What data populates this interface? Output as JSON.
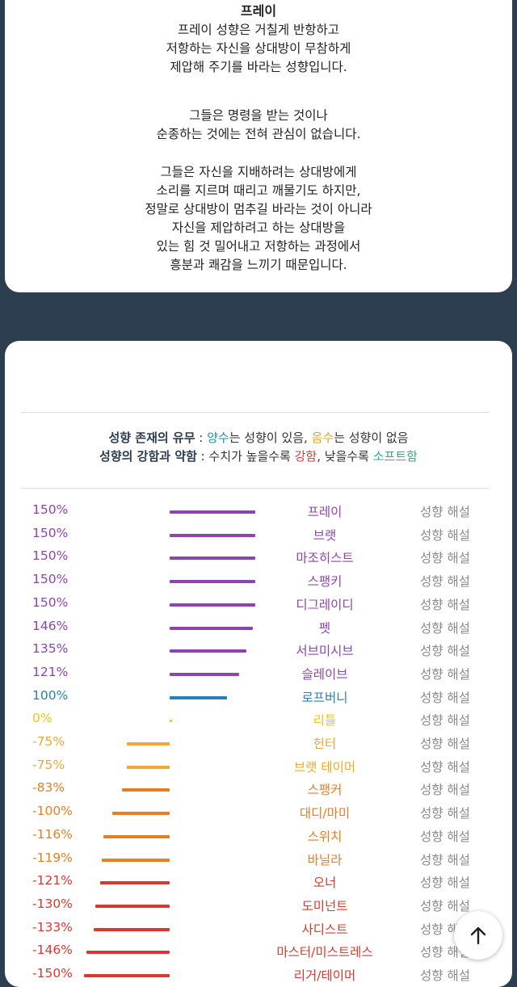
{
  "top_card": {
    "title": "프레이",
    "paragraphs": [
      [
        "프레이 성향은 거칠게 반항하고",
        "저항하는 자신을 상대방이 무참하게",
        "제압해 주기를 바라는 성향입니다."
      ],
      [
        "그들은 명령을 받는 것이나",
        "순종하는 것에는 전혀 관심이 없습니다."
      ],
      [
        "그들은 자신을 지배하려는 상대방에게",
        "소리를 지르며 때리고 깨물기도 하지만,",
        "정말로 상대방이 멈추길 바라는 것이 아니라",
        "자신을 제압하려고 하는 상대방을",
        "있는 힘 것 밀어내고 저항하는 과정에서",
        "흥분과 쾌감을 느끼기 때문입니다."
      ]
    ]
  },
  "legend": {
    "line1": {
      "label": "성향 존재의 유무",
      "sep": " : ",
      "pos": "양수",
      "t1": "는 성향이 있음, ",
      "neg": "음수",
      "t2": "는 성향이 없음"
    },
    "line2": {
      "label": "성향의 강함과 약함",
      "sep": " : ",
      "t1": "수치가 높을수록 ",
      "strong": "강함",
      "t2": ", 낮을수록 ",
      "soft": "소프트함"
    },
    "colors": {
      "pos": "#1a8fb3",
      "neg": "#e0a526",
      "strong": "#d9403a",
      "soft": "#2aae95"
    }
  },
  "rows_link": "성향 해설",
  "rows": [
    {
      "pct": "150%",
      "value": 150,
      "name": "프레이",
      "color": "#8e44ad"
    },
    {
      "pct": "150%",
      "value": 150,
      "name": "브랫",
      "color": "#8e44ad"
    },
    {
      "pct": "150%",
      "value": 150,
      "name": "마조히스트",
      "color": "#8e44ad"
    },
    {
      "pct": "150%",
      "value": 150,
      "name": "스팽키",
      "color": "#8e44ad"
    },
    {
      "pct": "150%",
      "value": 150,
      "name": "디그레이디",
      "color": "#8e44ad"
    },
    {
      "pct": "146%",
      "value": 146,
      "name": "펫",
      "color": "#8e44ad"
    },
    {
      "pct": "135%",
      "value": 135,
      "name": "서브미시브",
      "color": "#8e44ad"
    },
    {
      "pct": "121%",
      "value": 121,
      "name": "슬레이브",
      "color": "#8e44ad"
    },
    {
      "pct": "100%",
      "value": 100,
      "name": "로프버니",
      "color": "#2980b9"
    },
    {
      "pct": "0%",
      "value": 0,
      "name": "리틀",
      "color": "#f1c40f"
    },
    {
      "pct": "-75%",
      "value": -75,
      "name": "헌터",
      "color": "#f0a830"
    },
    {
      "pct": "-75%",
      "value": -75,
      "name": "브랫 테이머",
      "color": "#f0a830"
    },
    {
      "pct": "-83%",
      "value": -83,
      "name": "스팽커",
      "color": "#e67e22"
    },
    {
      "pct": "-100%",
      "value": -100,
      "name": "대디/마미",
      "color": "#e67e22"
    },
    {
      "pct": "-116%",
      "value": -116,
      "name": "스위치",
      "color": "#e67e22"
    },
    {
      "pct": "-119%",
      "value": -119,
      "name": "바닐라",
      "color": "#e67e22"
    },
    {
      "pct": "-121%",
      "value": -121,
      "name": "오너",
      "color": "#d63a2f"
    },
    {
      "pct": "-130%",
      "value": -130,
      "name": "도미넌트",
      "color": "#d63a2f"
    },
    {
      "pct": "-133%",
      "value": -133,
      "name": "사디스트",
      "color": "#d63a2f"
    },
    {
      "pct": "-146%",
      "value": -146,
      "name": "마스터/미스트레스",
      "color": "#d63a2f"
    },
    {
      "pct": "-150%",
      "value": -150,
      "name": "리거/테이머",
      "color": "#d63a2f"
    }
  ]
}
